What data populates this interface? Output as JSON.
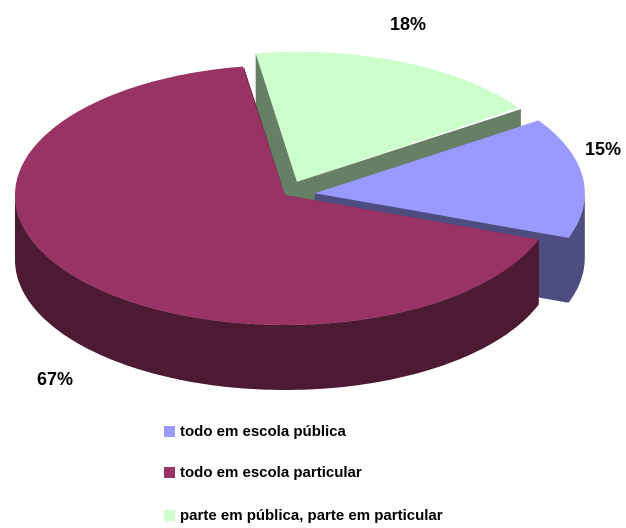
{
  "chart_data": {
    "type": "pie3d",
    "categories": [
      "todo em escola pública",
      "todo em escola particular",
      "parte em pública, parte em particular"
    ],
    "values": [
      15,
      67,
      18
    ],
    "value_labels": [
      "15%",
      "67%",
      "18%"
    ],
    "colors": [
      "#9999ff",
      "#993366",
      "#ccffcc"
    ],
    "legend": "bottom"
  }
}
